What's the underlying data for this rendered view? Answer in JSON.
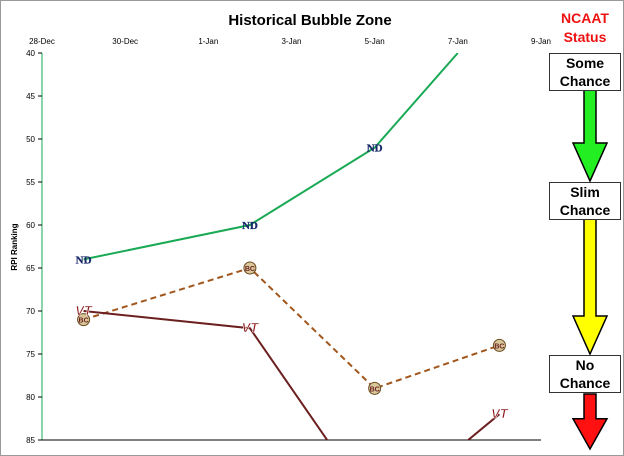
{
  "chart_data": {
    "type": "line",
    "title": "Historical  Bubble Zone",
    "xlabel": "",
    "ylabel": "RPI Ranking",
    "x_ticks": [
      "28-Dec",
      "30-Dec",
      "1-Jan",
      "3-Jan",
      "5-Jan",
      "7-Jan",
      "9-Jan"
    ],
    "y_ticks": [
      40,
      45,
      50,
      55,
      60,
      65,
      70,
      75,
      80,
      85
    ],
    "ylim": [
      40,
      85
    ],
    "y_inverted": true,
    "xlim": [
      "2012-12-28",
      "2013-01-09"
    ],
    "grid": false,
    "series": [
      {
        "team": "Notre Dame",
        "marker": "ND",
        "color": "#1aaa55",
        "dash": "solid",
        "points": [
          {
            "x": "2012-12-29",
            "y": 64
          },
          {
            "x": "2013-01-02",
            "y": 60
          },
          {
            "x": "2013-01-05",
            "y": 51
          },
          {
            "x": "2013-01-07",
            "y": 40
          }
        ],
        "marked_points": [
          0,
          1,
          2
        ]
      },
      {
        "team": "Boston College",
        "marker": "BC",
        "color": "#a0561c",
        "dash": "dashed",
        "points": [
          {
            "x": "2012-12-29",
            "y": 71
          },
          {
            "x": "2013-01-02",
            "y": 65
          },
          {
            "x": "2013-01-05",
            "y": 79
          },
          {
            "x": "2013-01-08",
            "y": 74
          }
        ],
        "marked_points": [
          0,
          1,
          2,
          3
        ]
      },
      {
        "team": "Virginia Tech",
        "marker": "VT",
        "color": "#6b1f1f",
        "dash": "solid",
        "points": [
          {
            "x": "2012-12-29",
            "y": 70
          },
          {
            "x": "2013-01-02",
            "y": 72
          },
          {
            "x": "2013-01-04",
            "y": 86
          },
          {
            "x": "2013-01-07",
            "y": 86
          },
          {
            "x": "2013-01-08",
            "y": 82
          }
        ],
        "marked_points": [
          0,
          1,
          4
        ]
      }
    ]
  },
  "status": {
    "header_line1": "NCAAT",
    "header_line2": "Status",
    "header_color": "#ee1111",
    "levels": [
      {
        "line1": "Some",
        "line2": "Chance",
        "arrow_color": "#22ee22"
      },
      {
        "line1": "Slim",
        "line2": "Chance",
        "arrow_color": "#ffff00"
      },
      {
        "line1": "No",
        "line2": "Chance",
        "arrow_color": "#ff1111"
      }
    ]
  }
}
